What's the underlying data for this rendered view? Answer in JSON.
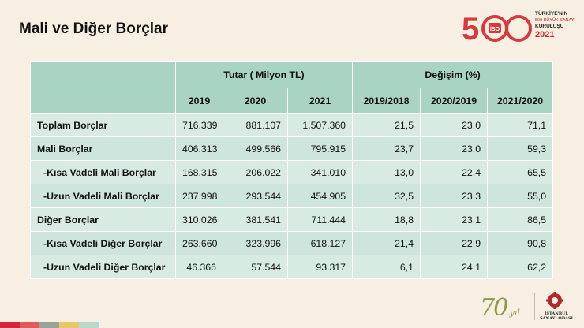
{
  "slide": {
    "title": "Mali ve Diğer Borçlar"
  },
  "logo_top": {
    "mark": "500",
    "line1": "TÜRKİYE'NİN",
    "line2": "500 BÜYÜK SANAYİ",
    "line3": "KURULUŞU",
    "year": "2021",
    "badge": "İSO"
  },
  "table": {
    "group_headers": {
      "amount": "Tutar ( Milyon TL)",
      "change": "Değişim (%)"
    },
    "columns": [
      "2019",
      "2020",
      "2021",
      "2019/2018",
      "2020/2019",
      "2021/2020"
    ],
    "rows": [
      {
        "label": "Toplam Borçlar",
        "values": [
          "716.339",
          "881.107",
          "1.507.360",
          "21,5",
          "23,0",
          "71,1"
        ]
      },
      {
        "label": "Mali Borçlar",
        "values": [
          "406.313",
          "499.566",
          "795.915",
          "23,7",
          "23,0",
          "59,3"
        ]
      },
      {
        "label": "-Kısa Vadeli Mali Borçlar",
        "values": [
          "168.315",
          "206.022",
          "341.010",
          "13,0",
          "22,4",
          "65,5"
        ]
      },
      {
        "label": "-Uzun Vadeli Mali Borçlar",
        "values": [
          "237.998",
          "293.544",
          "454.905",
          "32,5",
          "23,3",
          "55,0"
        ]
      },
      {
        "label": "Diğer Borçlar",
        "values": [
          "310.026",
          "381.541",
          "711.444",
          "18,8",
          "23,1",
          "86,5"
        ]
      },
      {
        "label": "-Kısa Vadeli Diğer Borçlar",
        "values": [
          "263.660",
          "323.996",
          "618.127",
          "21,4",
          "22,9",
          "90,8"
        ]
      },
      {
        "label": "-Uzun Vadeli Diğer Borçlar",
        "values": [
          "46.366",
          "57.544",
          "93.317",
          "6,1",
          "24,1",
          "62,2"
        ]
      }
    ]
  },
  "footer": {
    "anniv_number": "70",
    "anniv_suffix": ".yıl",
    "org_line1": "İSTANBUL",
    "org_line2": "SANAYİ ODASI",
    "stripe_colors": [
      "#d6263a",
      "#e05a5a",
      "#9aa39a",
      "#e6c76a",
      "#b7d9cc"
    ]
  }
}
